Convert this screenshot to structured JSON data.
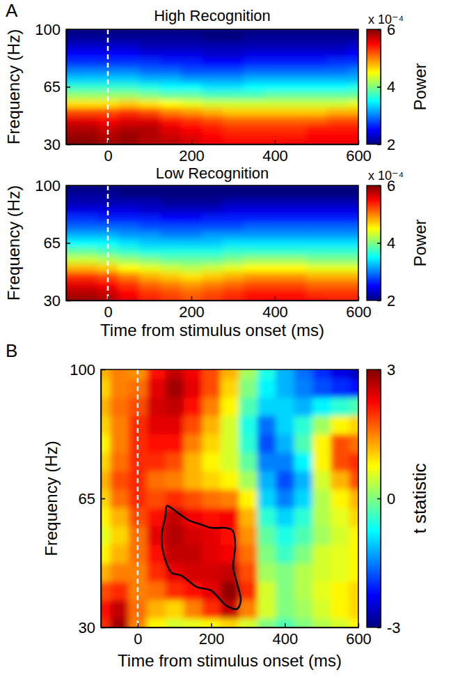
{
  "chart_data": [
    {
      "type": "heatmap",
      "panel": "A",
      "title": "High Recognition",
      "y_label": "Frequency (Hz)",
      "x": [
        -100,
        -50,
        0,
        50,
        100,
        150,
        200,
        250,
        300,
        350,
        400,
        450,
        500,
        550,
        600
      ],
      "y": [
        30,
        35,
        40,
        45,
        50,
        55,
        60,
        65,
        70,
        75,
        80,
        85,
        90,
        95,
        100
      ],
      "values": [
        [
          6.0,
          6.0,
          5.9,
          5.9,
          5.8,
          5.8,
          5.7,
          5.6,
          5.5,
          5.5,
          5.5,
          5.6,
          5.6,
          5.6,
          5.6
        ],
        [
          5.9,
          5.9,
          5.8,
          5.9,
          5.8,
          5.7,
          5.6,
          5.5,
          5.4,
          5.4,
          5.4,
          5.4,
          5.5,
          5.5,
          5.5
        ],
        [
          5.8,
          5.8,
          5.7,
          5.8,
          5.8,
          5.6,
          5.5,
          5.4,
          5.3,
          5.3,
          5.3,
          5.3,
          5.4,
          5.4,
          5.4
        ],
        [
          5.6,
          5.6,
          5.5,
          5.6,
          5.6,
          5.4,
          5.3,
          5.2,
          5.1,
          5.1,
          5.1,
          5.1,
          5.1,
          5.2,
          5.2
        ],
        [
          5.2,
          5.2,
          5.2,
          5.3,
          5.2,
          5.0,
          4.9,
          4.8,
          4.7,
          4.7,
          4.7,
          4.7,
          4.7,
          4.8,
          4.8
        ],
        [
          4.6,
          4.6,
          4.6,
          4.7,
          4.6,
          4.5,
          4.4,
          4.3,
          4.3,
          4.3,
          4.3,
          4.3,
          4.3,
          4.3,
          4.4
        ],
        [
          4.1,
          4.1,
          4.1,
          4.1,
          4.0,
          3.9,
          3.9,
          3.8,
          3.8,
          3.8,
          3.9,
          3.9,
          3.9,
          3.9,
          3.9
        ],
        [
          3.7,
          3.7,
          3.7,
          3.7,
          3.6,
          3.5,
          3.5,
          3.4,
          3.4,
          3.5,
          3.5,
          3.5,
          3.5,
          3.5,
          3.6
        ],
        [
          3.3,
          3.3,
          3.3,
          3.3,
          3.2,
          3.2,
          3.1,
          3.1,
          3.1,
          3.2,
          3.2,
          3.2,
          3.2,
          3.2,
          3.2
        ],
        [
          3.0,
          3.0,
          3.0,
          3.0,
          2.9,
          2.9,
          2.8,
          2.8,
          2.8,
          2.9,
          2.9,
          2.9,
          2.9,
          2.9,
          3.0
        ],
        [
          2.7,
          2.7,
          2.7,
          2.7,
          2.7,
          2.6,
          2.6,
          2.5,
          2.5,
          2.6,
          2.6,
          2.6,
          2.6,
          2.7,
          2.7
        ],
        [
          2.5,
          2.5,
          2.5,
          2.5,
          2.4,
          2.4,
          2.4,
          2.3,
          2.3,
          2.4,
          2.4,
          2.4,
          2.4,
          2.4,
          2.5
        ],
        [
          2.3,
          2.3,
          2.3,
          2.3,
          2.2,
          2.2,
          2.2,
          2.2,
          2.2,
          2.2,
          2.2,
          2.2,
          2.2,
          2.2,
          2.3
        ],
        [
          2.1,
          2.1,
          2.1,
          2.1,
          2.1,
          2.1,
          2.1,
          2.0,
          2.0,
          2.1,
          2.1,
          2.1,
          2.1,
          2.1,
          2.1
        ],
        [
          2.0,
          2.0,
          2.0,
          2.0,
          2.0,
          2.0,
          2.0,
          2.0,
          2.0,
          2.0,
          2.0,
          2.0,
          2.0,
          2.0,
          2.0
        ]
      ],
      "xlim": [
        -100,
        600
      ],
      "ylim": [
        30,
        100
      ],
      "xticks": [
        0,
        200,
        400,
        600
      ],
      "yticks": [
        30,
        65,
        100
      ],
      "onset": 0,
      "colorbar_label": "Power",
      "colorbar_note": "x 10⁻⁴",
      "colorbar_lim": [
        2,
        6
      ],
      "colorbar_ticks": [
        2,
        4,
        6
      ]
    },
    {
      "type": "heatmap",
      "title": "Low Recognition",
      "x_label": "Time from stimulus onset (ms)",
      "y_label": "Frequency (Hz)",
      "x": [
        -100,
        -50,
        0,
        50,
        100,
        150,
        200,
        250,
        300,
        350,
        400,
        450,
        500,
        550,
        600
      ],
      "y": [
        30,
        35,
        40,
        45,
        50,
        55,
        60,
        65,
        70,
        75,
        80,
        85,
        90,
        95,
        100
      ],
      "values": [
        [
          5.9,
          5.9,
          5.8,
          5.6,
          5.4,
          5.3,
          5.2,
          5.3,
          5.4,
          5.5,
          5.5,
          5.5,
          5.5,
          5.4,
          5.4
        ],
        [
          5.8,
          5.8,
          5.7,
          5.5,
          5.3,
          5.2,
          5.1,
          5.2,
          5.3,
          5.4,
          5.4,
          5.4,
          5.3,
          5.3,
          5.3
        ],
        [
          5.6,
          5.6,
          5.5,
          5.3,
          5.1,
          5.0,
          4.9,
          5.0,
          5.1,
          5.2,
          5.2,
          5.2,
          5.1,
          5.1,
          5.1
        ],
        [
          5.3,
          5.3,
          5.2,
          5.0,
          4.8,
          4.7,
          4.6,
          4.7,
          4.8,
          4.9,
          4.9,
          4.9,
          4.8,
          4.8,
          4.8
        ],
        [
          4.8,
          4.8,
          4.7,
          4.5,
          4.4,
          4.3,
          4.2,
          4.3,
          4.4,
          4.5,
          4.5,
          4.5,
          4.4,
          4.4,
          4.4
        ],
        [
          4.3,
          4.3,
          4.2,
          4.1,
          4.0,
          3.9,
          3.9,
          3.9,
          4.0,
          4.1,
          4.1,
          4.1,
          4.0,
          4.0,
          4.0
        ],
        [
          3.9,
          3.9,
          3.8,
          3.7,
          3.6,
          3.6,
          3.6,
          3.6,
          3.7,
          3.7,
          3.7,
          3.7,
          3.7,
          3.7,
          3.7
        ],
        [
          3.5,
          3.5,
          3.5,
          3.4,
          3.3,
          3.3,
          3.3,
          3.3,
          3.4,
          3.4,
          3.4,
          3.4,
          3.4,
          3.4,
          3.4
        ],
        [
          3.2,
          3.2,
          3.2,
          3.1,
          3.1,
          3.0,
          3.0,
          3.1,
          3.1,
          3.1,
          3.1,
          3.1,
          3.1,
          3.1,
          3.1
        ],
        [
          2.9,
          2.9,
          2.9,
          2.9,
          2.8,
          2.8,
          2.8,
          2.8,
          2.8,
          2.9,
          2.9,
          2.9,
          2.9,
          2.9,
          2.9
        ],
        [
          2.7,
          2.7,
          2.6,
          2.6,
          2.6,
          2.5,
          2.5,
          2.6,
          2.6,
          2.6,
          2.6,
          2.6,
          2.6,
          2.6,
          2.6
        ],
        [
          2.4,
          2.4,
          2.4,
          2.4,
          2.3,
          2.3,
          2.3,
          2.3,
          2.4,
          2.4,
          2.4,
          2.4,
          2.4,
          2.4,
          2.4
        ],
        [
          2.2,
          2.2,
          2.2,
          2.2,
          2.2,
          2.1,
          2.1,
          2.1,
          2.2,
          2.2,
          2.2,
          2.2,
          2.2,
          2.2,
          2.2
        ],
        [
          2.1,
          2.1,
          2.1,
          2.0,
          2.0,
          2.0,
          2.0,
          2.0,
          2.0,
          2.0,
          2.0,
          2.0,
          2.0,
          2.0,
          2.0
        ],
        [
          2.0,
          2.0,
          2.0,
          2.0,
          2.0,
          2.0,
          2.0,
          2.0,
          2.0,
          2.0,
          2.0,
          2.0,
          2.0,
          2.0,
          2.0
        ]
      ],
      "xlim": [
        -100,
        600
      ],
      "ylim": [
        30,
        100
      ],
      "xticks": [
        0,
        200,
        400,
        600
      ],
      "yticks": [
        30,
        65,
        100
      ],
      "onset": 0,
      "colorbar_label": "Power",
      "colorbar_note": "x 10⁻⁴",
      "colorbar_lim": [
        2,
        6
      ],
      "colorbar_ticks": [
        2,
        4,
        6
      ]
    },
    {
      "type": "heatmap",
      "panel": "B",
      "x_label": "Time from stimulus onset (ms)",
      "y_label": "Frequency (Hz)",
      "x": [
        -100,
        -50,
        0,
        50,
        100,
        150,
        200,
        250,
        300,
        350,
        400,
        450,
        500,
        550,
        600
      ],
      "y": [
        30,
        35,
        40,
        45,
        50,
        55,
        60,
        65,
        70,
        75,
        80,
        85,
        90,
        95,
        100
      ],
      "values": [
        [
          2.0,
          2.8,
          1.5,
          0.8,
          0.5,
          0.6,
          0.8,
          1.0,
          0.5,
          0.0,
          -0.3,
          0.0,
          0.3,
          0.5,
          0.8
        ],
        [
          2.2,
          2.6,
          1.6,
          1.2,
          1.0,
          1.5,
          2.0,
          2.6,
          1.5,
          0.5,
          0.0,
          0.2,
          0.5,
          0.8,
          1.0
        ],
        [
          1.8,
          2.0,
          1.5,
          1.6,
          2.0,
          2.2,
          2.4,
          2.9,
          2.0,
          0.5,
          0.0,
          0.3,
          0.6,
          0.8,
          1.0
        ],
        [
          1.2,
          1.5,
          1.5,
          2.0,
          2.4,
          2.5,
          2.5,
          2.6,
          1.8,
          0.2,
          0.0,
          0.3,
          0.5,
          0.6,
          0.8
        ],
        [
          0.8,
          1.2,
          1.6,
          2.2,
          2.6,
          2.6,
          2.4,
          2.3,
          1.6,
          0.0,
          -0.4,
          0.0,
          0.5,
          0.6,
          0.8
        ],
        [
          0.6,
          1.0,
          1.6,
          2.4,
          2.7,
          2.5,
          2.4,
          2.2,
          1.4,
          -0.2,
          -0.6,
          -0.3,
          0.2,
          0.5,
          0.8
        ],
        [
          0.8,
          1.2,
          1.8,
          2.2,
          2.6,
          2.3,
          2.2,
          2.3,
          1.2,
          -0.5,
          -1.0,
          -0.5,
          0.3,
          0.6,
          1.0
        ],
        [
          1.0,
          1.6,
          2.0,
          1.8,
          2.0,
          1.8,
          1.6,
          1.5,
          0.8,
          -1.0,
          -1.5,
          -1.0,
          0.3,
          0.8,
          1.2
        ],
        [
          1.2,
          1.8,
          2.0,
          1.6,
          1.5,
          1.2,
          1.0,
          0.8,
          0.2,
          -1.2,
          -1.8,
          -1.2,
          0.5,
          1.2,
          1.8
        ],
        [
          1.0,
          1.6,
          2.0,
          2.0,
          1.8,
          1.2,
          0.8,
          0.5,
          -0.2,
          -1.5,
          -1.5,
          -0.8,
          0.8,
          1.8,
          2.0
        ],
        [
          0.8,
          1.5,
          2.0,
          2.2,
          2.2,
          1.5,
          1.0,
          0.5,
          -0.5,
          -1.8,
          -1.2,
          -0.3,
          0.8,
          1.8,
          1.6
        ],
        [
          1.0,
          1.5,
          2.0,
          2.4,
          2.4,
          1.8,
          1.2,
          0.5,
          -0.6,
          -1.6,
          -1.0,
          -0.5,
          0.2,
          0.8,
          1.0
        ],
        [
          1.2,
          1.6,
          1.8,
          2.5,
          2.6,
          2.2,
          1.5,
          0.8,
          -0.3,
          -1.0,
          -1.0,
          -1.2,
          -0.8,
          -0.5,
          -0.3
        ],
        [
          1.0,
          1.5,
          1.6,
          2.4,
          2.8,
          2.4,
          1.8,
          1.0,
          0.0,
          -0.8,
          -1.2,
          -1.5,
          -1.8,
          -2.0,
          -2.2
        ],
        [
          1.2,
          1.5,
          1.4,
          2.2,
          2.6,
          2.3,
          1.8,
          1.2,
          0.2,
          -0.6,
          -1.2,
          -1.6,
          -2.0,
          -2.4,
          -2.6
        ]
      ],
      "xlim": [
        -100,
        600
      ],
      "ylim": [
        30,
        100
      ],
      "xticks": [
        0,
        200,
        400,
        600
      ],
      "yticks": [
        30,
        65,
        100
      ],
      "onset": 0,
      "colorbar_label": "t statistic",
      "colorbar_lim": [
        -3,
        3
      ],
      "colorbar_ticks": [
        -3,
        0,
        3
      ],
      "cluster_outline": {
        "time": [
          80,
          110,
          140,
          170,
          200,
          240,
          260,
          265,
          260,
          280,
          270,
          240,
          200,
          160,
          120,
          90,
          70,
          65,
          75
        ],
        "frequency": [
          63,
          61,
          59,
          58,
          57,
          57,
          56,
          52,
          46,
          38,
          35,
          36,
          40,
          41,
          44,
          45,
          50,
          55,
          60
        ]
      }
    }
  ]
}
